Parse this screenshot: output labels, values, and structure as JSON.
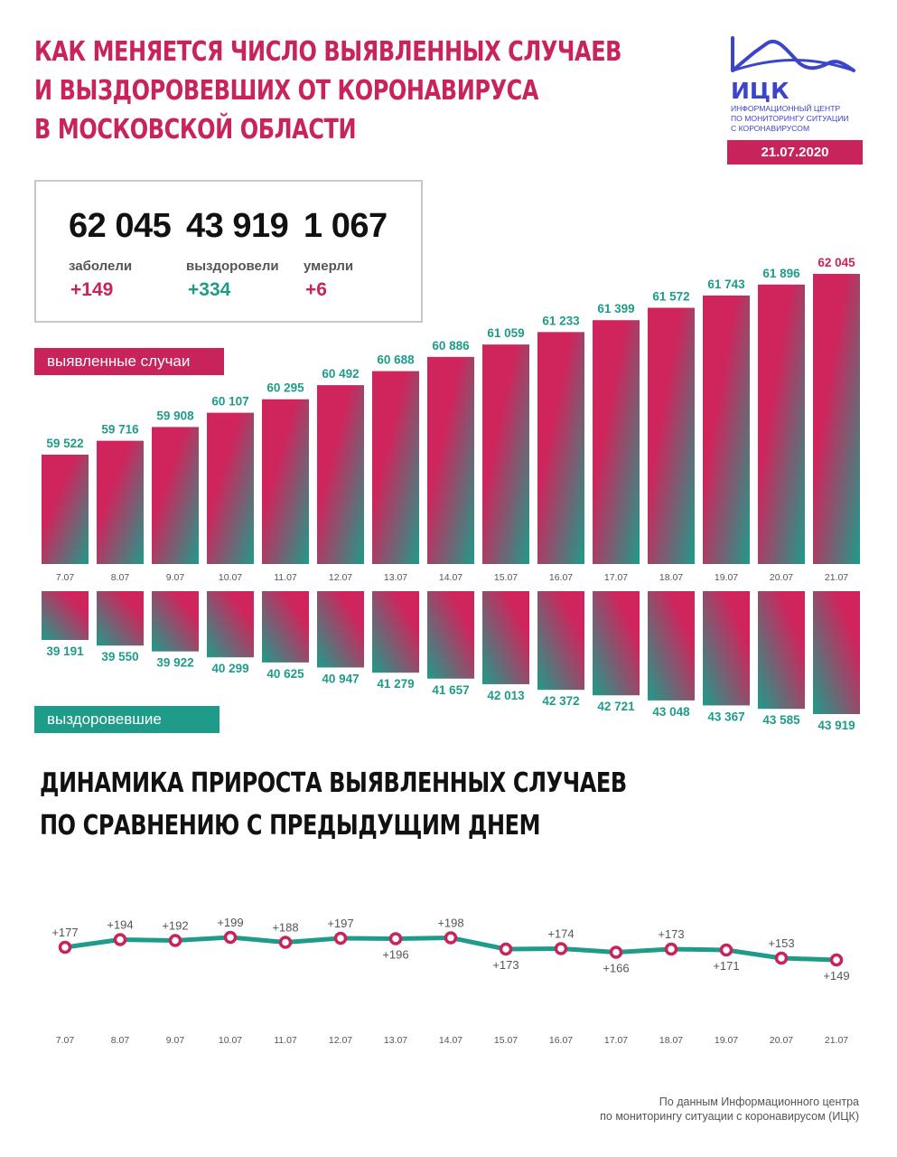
{
  "header": {
    "title_lines": [
      "КАК МЕНЯЕТСЯ ЧИСЛО ВЫЯВЛЕННЫХ СЛУЧАЕВ",
      "И ВЫЗДОРОВЕВШИХ ОТ КОРОНАВИРУСА",
      "В МОСКОВСКОЙ ОБЛАСТИ"
    ]
  },
  "logo": {
    "name": "ИЦК",
    "description_lines": [
      "Информационный центр",
      "по мониторингу ситуации",
      "с коронавирусом"
    ],
    "date": "21.07.2020"
  },
  "summary": {
    "infected": {
      "value": "62 045",
      "label": "заболели",
      "delta": "+149"
    },
    "recovered": {
      "value": "43 919",
      "label": "выздоровели",
      "delta": "+334"
    },
    "deaths": {
      "value": "1 067",
      "label": "умерли",
      "delta": "+6"
    }
  },
  "labels": {
    "cases": "выявленные случаи",
    "recovered": "выздоровевшие"
  },
  "section2": {
    "title_lines": [
      "ДИНАМИКА ПРИРОСТА ВЫЯВЛЕННЫХ СЛУЧАЕВ",
      "ПО СРАВНЕНИЮ С ПРЕДЫДУЩИМ ДНЕМ"
    ]
  },
  "source": {
    "lines": [
      "По данным Информационного центра",
      "по мониторингу ситуации с коронавирусом (ИЦК)"
    ]
  },
  "colors": {
    "accent": "#c8235a",
    "teal": "#1f9b8a",
    "brand": "#3b45c9"
  },
  "chart_data": [
    {
      "type": "bar",
      "categories": [
        "7.07",
        "8.07",
        "9.07",
        "10.07",
        "11.07",
        "12.07",
        "13.07",
        "14.07",
        "15.07",
        "16.07",
        "17.07",
        "18.07",
        "19.07",
        "20.07",
        "21.07"
      ],
      "values": [
        59522,
        59716,
        59908,
        60107,
        60295,
        60492,
        60688,
        60886,
        61059,
        61233,
        61399,
        61572,
        61743,
        61896,
        62045
      ],
      "value_labels": [
        "59 522",
        "59 716",
        "59 908",
        "60 107",
        "60 295",
        "60 492",
        "60 688",
        "60 886",
        "61 059",
        "61 233",
        "61 399",
        "61 572",
        "61 743",
        "61 896",
        "62 045"
      ]
    },
    {
      "type": "bar",
      "categories": [
        "7.07",
        "8.07",
        "9.07",
        "10.07",
        "11.07",
        "12.07",
        "13.07",
        "14.07",
        "15.07",
        "16.07",
        "17.07",
        "18.07",
        "19.07",
        "20.07",
        "21.07"
      ],
      "values": [
        39191,
        39550,
        39922,
        40299,
        40625,
        40947,
        41279,
        41657,
        42013,
        42372,
        42721,
        43048,
        43367,
        43585,
        43919
      ],
      "value_labels": [
        "39 191",
        "39 550",
        "39 922",
        "40 299",
        "40 625",
        "40 947",
        "41 279",
        "41 657",
        "42 013",
        "42 372",
        "42 721",
        "43 048",
        "43 367",
        "43 585",
        "43 919"
      ],
      "direction": "down"
    },
    {
      "type": "line",
      "categories": [
        "7.07",
        "8.07",
        "9.07",
        "10.07",
        "11.07",
        "12.07",
        "13.07",
        "14.07",
        "15.07",
        "16.07",
        "17.07",
        "18.07",
        "19.07",
        "20.07",
        "21.07"
      ],
      "values": [
        177,
        194,
        192,
        199,
        188,
        197,
        196,
        198,
        173,
        174,
        166,
        173,
        171,
        153,
        149
      ],
      "value_labels": [
        "+177",
        "+194",
        "+192",
        "+199",
        "+188",
        "+197",
        "+196",
        "+198",
        "+173",
        "+174",
        "+166",
        "+173",
        "+171",
        "+153",
        "+149"
      ],
      "label_position": [
        "above",
        "above",
        "above",
        "above",
        "above",
        "above",
        "below",
        "above",
        "below",
        "above",
        "below",
        "above",
        "below",
        "above",
        "below"
      ]
    }
  ]
}
